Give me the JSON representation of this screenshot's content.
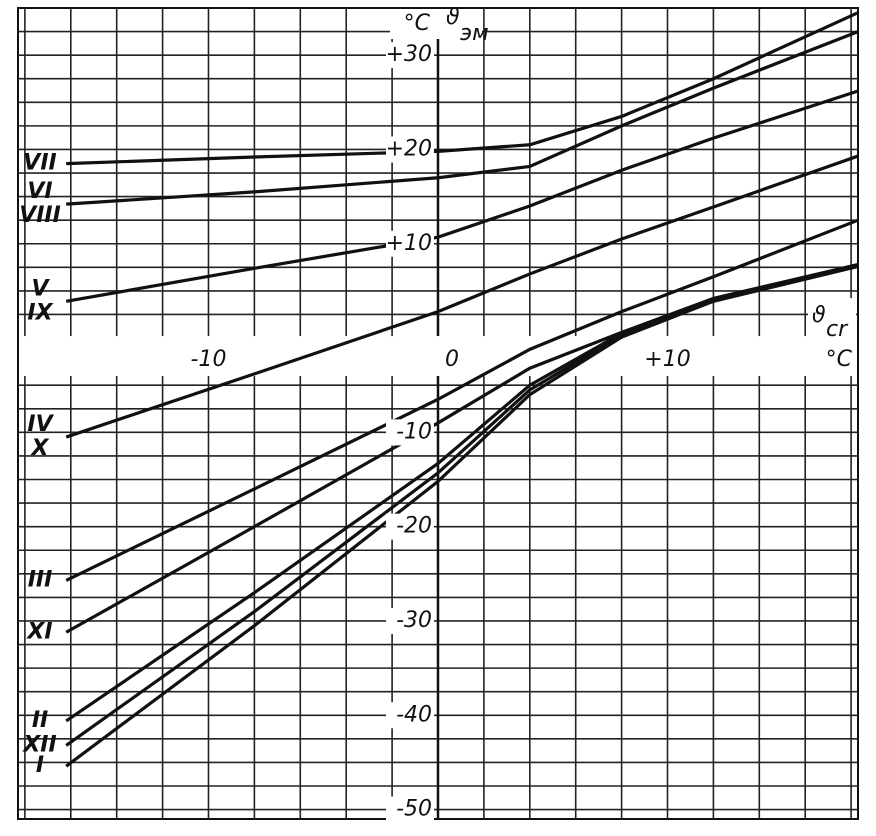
{
  "chart_data": {
    "type": "line",
    "y_unit": "°C",
    "y_label": "ϑ",
    "y_label_sub": "эм",
    "x_unit": "°C",
    "x_label": "ϑ",
    "x_label_sub": "cr",
    "xlim": [
      -18.3,
      18.3
    ],
    "ylim": [
      -51,
      35
    ],
    "xticks": [
      -10,
      0,
      {
        "value": 10,
        "label": "+10"
      }
    ],
    "yticks": [
      {
        "value": 30,
        "label": "+30"
      },
      {
        "value": 20,
        "label": "+20"
      },
      {
        "value": 10,
        "label": "+10"
      },
      -10,
      -20,
      -30,
      -40,
      -50
    ],
    "xgrid": [
      -18,
      -16,
      -14,
      -12,
      -10,
      -8,
      -6,
      -4,
      -2,
      0,
      2,
      4,
      6,
      8,
      10,
      12,
      14,
      16,
      18
    ],
    "ygrid": [
      -50,
      -47.5,
      -45,
      -42.5,
      -40,
      -37.5,
      -35,
      -32.5,
      -30,
      -27.5,
      -25,
      -22.5,
      -20,
      -17.5,
      -15,
      -12.5,
      -10,
      -7.5,
      -5,
      -2.5,
      0,
      2.5,
      5,
      7.5,
      10,
      12.5,
      15,
      17.5,
      20,
      22.5,
      25,
      27.5,
      30,
      32.5
    ],
    "color": "#111111",
    "x": [
      -16.2,
      -8,
      0,
      4,
      8,
      12,
      18.3
    ],
    "series": [
      {
        "labels": [
          "VII"
        ],
        "values": [
          18.5,
          19.2,
          19.8,
          20.5,
          23.5,
          27.5,
          34.5
        ]
      },
      {
        "labels": [
          "VI",
          "VIII"
        ],
        "values": [
          14.2,
          15.5,
          17,
          18.2,
          22.5,
          26.5,
          32.5
        ]
      },
      {
        "labels": [
          "V",
          "IX"
        ],
        "values": [
          3.9,
          7.4,
          10.7,
          14,
          17.8,
          21.2,
          26.2
        ]
      },
      {
        "labels": [
          "IV",
          "X"
        ],
        "values": [
          -10.5,
          -3.8,
          2.8,
          6.8,
          10.5,
          13.9,
          19.3
        ]
      },
      {
        "labels": [
          "III"
        ],
        "values": [
          -25.7,
          -16,
          -6.5,
          -1.2,
          2.8,
          6.5,
          12.5
        ]
      },
      {
        "labels": [
          "XI"
        ],
        "values": [
          -31.2,
          -20,
          -9,
          -3.2,
          0.6,
          4.2,
          7.8
        ]
      },
      {
        "labels": [
          "II"
        ],
        "values": [
          -40.6,
          -27,
          -13.3,
          -5,
          0.5,
          4.1,
          7.8
        ]
      },
      {
        "labels": [
          "XII"
        ],
        "values": [
          -43.2,
          -29,
          -14.3,
          -5.5,
          0.3,
          4,
          7.7
        ]
      },
      {
        "labels": [
          "I"
        ],
        "values": [
          -45.4,
          -30.5,
          -15.2,
          -6,
          0.1,
          3.9,
          7.6
        ]
      }
    ]
  }
}
